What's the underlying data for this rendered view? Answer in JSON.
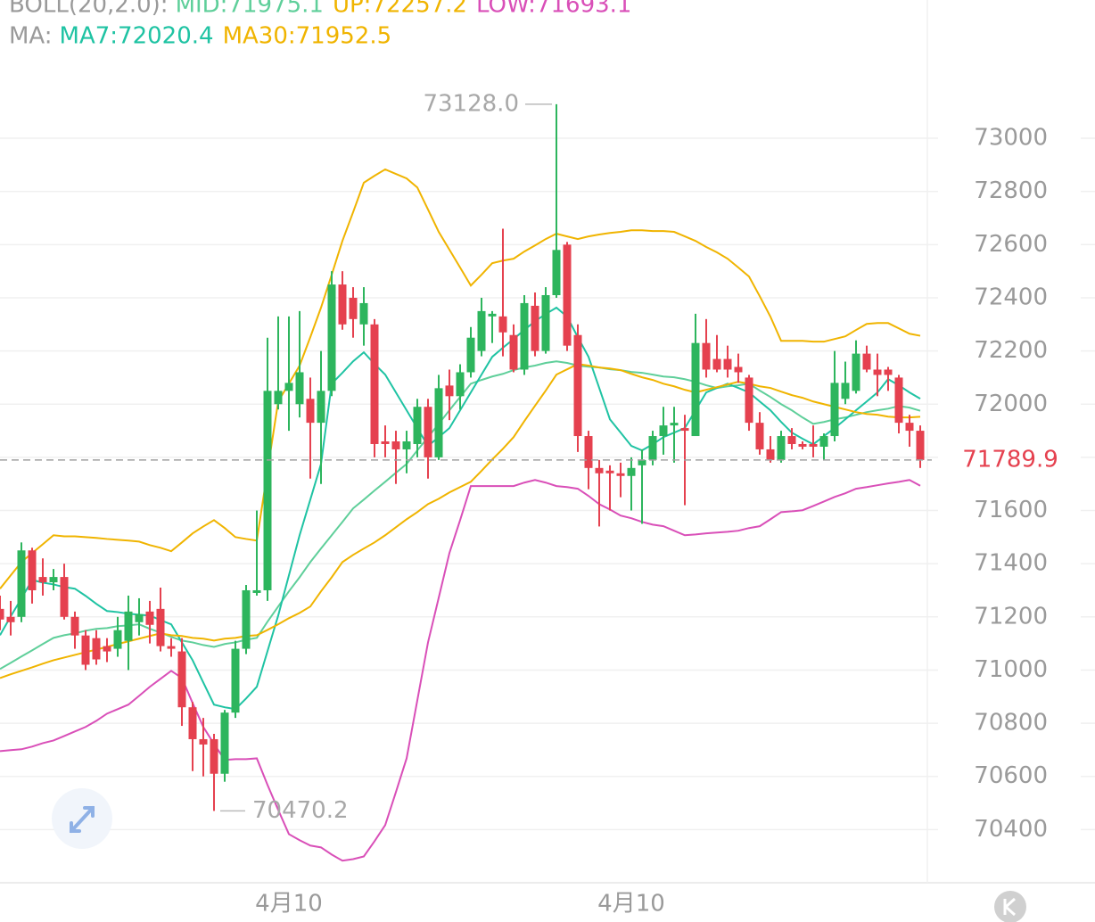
{
  "chart_data": {
    "type": "candlestick",
    "up_color": "#2db55d",
    "down_color": "#e5414f",
    "ylim": [
      70200,
      73520
    ],
    "yticks": [
      70400,
      70600,
      70800,
      71000,
      71200,
      71400,
      71600,
      71800,
      72000,
      72200,
      72400,
      72600,
      72800,
      73000
    ],
    "grid": true,
    "categories": [
      null,
      null,
      null,
      null,
      null,
      null,
      null,
      null,
      null,
      null,
      null,
      null,
      null,
      null,
      null,
      null,
      null,
      null,
      null,
      null,
      null,
      null,
      null,
      null,
      null,
      null,
      null,
      "4月10",
      null,
      null,
      null,
      null,
      null,
      null,
      null,
      null,
      null,
      null,
      null,
      null,
      null,
      null,
      null,
      null,
      null,
      null,
      null,
      null,
      null,
      null,
      null,
      null,
      null,
      null,
      null,
      null,
      null,
      null,
      null,
      "4月10",
      null,
      null,
      null,
      null,
      null,
      null,
      null,
      null,
      null,
      null,
      null,
      null,
      null,
      null,
      null,
      null,
      null,
      null,
      null,
      null,
      null,
      null,
      null,
      null,
      null,
      null,
      null
    ],
    "candles": [
      [
        71230,
        71280,
        71150,
        71190
      ],
      [
        71200,
        71260,
        71130,
        71180
      ],
      [
        71200,
        71480,
        71180,
        71450
      ],
      [
        71450,
        71460,
        71250,
        71300
      ],
      [
        71350,
        71420,
        71280,
        71330
      ],
      [
        71330,
        71380,
        71300,
        71350
      ],
      [
        71350,
        71400,
        71190,
        71200
      ],
      [
        71200,
        71220,
        71080,
        71130
      ],
      [
        71130,
        71150,
        71000,
        71020
      ],
      [
        71120,
        71150,
        71020,
        71040
      ],
      [
        71090,
        71120,
        71030,
        71070
      ],
      [
        71080,
        71200,
        71050,
        71150
      ],
      [
        71110,
        71280,
        71000,
        71220
      ],
      [
        71180,
        71270,
        71130,
        71210
      ],
      [
        71220,
        71260,
        71100,
        71170
      ],
      [
        71230,
        71310,
        71070,
        71090
      ],
      [
        71090,
        71120,
        71050,
        71080
      ],
      [
        71070,
        71120,
        70790,
        70860
      ],
      [
        70860,
        70880,
        70620,
        70740
      ],
      [
        70740,
        70820,
        70600,
        70720
      ],
      [
        70740,
        70760,
        70470.2,
        70610
      ],
      [
        70610,
        70850,
        70580,
        70840
      ],
      [
        70840,
        71110,
        70820,
        71080
      ],
      [
        71080,
        71320,
        71060,
        71300
      ],
      [
        71290,
        71600,
        71280,
        71300
      ],
      [
        71300,
        72250,
        71260,
        72050
      ],
      [
        72000,
        72330,
        71980,
        72050
      ],
      [
        72050,
        72330,
        71900,
        72080
      ],
      [
        72000,
        72350,
        71950,
        72120
      ],
      [
        72020,
        72100,
        71720,
        71930
      ],
      [
        71930,
        72200,
        71700,
        72050
      ],
      [
        72050,
        72500,
        72030,
        72450
      ],
      [
        72450,
        72500,
        72280,
        72300
      ],
      [
        72400,
        72440,
        72250,
        72320
      ],
      [
        72300,
        72440,
        72220,
        72380
      ],
      [
        72300,
        72320,
        71800,
        71850
      ],
      [
        71860,
        71920,
        71800,
        71850
      ],
      [
        71860,
        71900,
        71700,
        71830
      ],
      [
        71830,
        71900,
        71740,
        71860
      ],
      [
        71850,
        72020,
        71800,
        71990
      ],
      [
        71990,
        72020,
        71720,
        71800
      ],
      [
        71800,
        72110,
        71790,
        72060
      ],
      [
        72070,
        72130,
        71940,
        72030
      ],
      [
        72030,
        72150,
        71980,
        72120
      ],
      [
        72120,
        72290,
        72100,
        72250
      ],
      [
        72200,
        72400,
        72180,
        72350
      ],
      [
        72330,
        72350,
        72230,
        72340
      ],
      [
        72330,
        72660,
        72180,
        72270
      ],
      [
        72260,
        72300,
        72120,
        72130
      ],
      [
        72130,
        72410,
        72110,
        72380
      ],
      [
        72370,
        72420,
        72180,
        72200
      ],
      [
        72200,
        72440,
        72190,
        72410
      ],
      [
        72410,
        73128.0,
        72400,
        72580
      ],
      [
        72600,
        72610,
        72200,
        72220
      ],
      [
        72260,
        72300,
        71820,
        71880
      ],
      [
        71880,
        71900,
        71680,
        71760
      ],
      [
        71760,
        71790,
        71540,
        71740
      ],
      [
        71750,
        71770,
        71600,
        71740
      ],
      [
        71740,
        71780,
        71650,
        71730
      ],
      [
        71730,
        71800,
        71600,
        71760
      ],
      [
        71770,
        71830,
        71550,
        71790
      ],
      [
        71790,
        71900,
        71770,
        71880
      ],
      [
        71880,
        71990,
        71810,
        71920
      ],
      [
        71920,
        71990,
        71780,
        71930
      ],
      [
        71910,
        71960,
        71620,
        71900
      ],
      [
        71880,
        72340,
        71880,
        72230
      ],
      [
        72230,
        72320,
        72100,
        72130
      ],
      [
        72170,
        72260,
        72120,
        72130
      ],
      [
        72170,
        72220,
        72100,
        72130
      ],
      [
        72140,
        72190,
        72080,
        72120
      ],
      [
        72100,
        72110,
        71900,
        71930
      ],
      [
        71930,
        71970,
        71810,
        71830
      ],
      [
        71830,
        71880,
        71780,
        71790
      ],
      [
        71790,
        71900,
        71780,
        71880
      ],
      [
        71880,
        71910,
        71830,
        71850
      ],
      [
        71850,
        71860,
        71830,
        71840
      ],
      [
        71850,
        71920,
        71800,
        71840
      ],
      [
        71840,
        71890,
        71790,
        71880
      ],
      [
        71880,
        72200,
        71860,
        72080
      ],
      [
        72020,
        72160,
        72000,
        72080
      ],
      [
        72050,
        72240,
        72040,
        72190
      ],
      [
        72190,
        72220,
        72120,
        72130
      ],
      [
        72130,
        72190,
        72030,
        72110
      ],
      [
        72130,
        72140,
        72050,
        72110
      ],
      [
        72100,
        72110,
        71890,
        71930
      ],
      [
        71930,
        71960,
        71840,
        71900
      ],
      [
        71900,
        71920,
        71760,
        71789.9
      ]
    ],
    "indicators": [
      {
        "label": "BOLL(20,2.0):",
        "series": [
          {
            "name": "MID:71975.1",
            "color": "#5fcf9a",
            "values": [
              71004,
              71027,
              71051,
              71074,
              71098,
              71121,
              71131,
              71138,
              71148,
              71155,
              71158,
              71165,
              71168,
              71172,
              71155,
              71141,
              71125,
              71111,
              71104,
              71094,
              71087,
              71098,
              71104,
              71114,
              71121,
              71182,
              71239,
              71296,
              71349,
              71406,
              71457,
              71507,
              71557,
              71608,
              71641,
              71675,
              71708,
              71742,
              71775,
              71826,
              71876,
              71926,
              71977,
              72027,
              72077,
              72091,
              72104,
              72114,
              72128,
              72138,
              72145,
              72155,
              72161,
              72155,
              72145,
              72141,
              72138,
              72131,
              72128,
              72121,
              72118,
              72111,
              72104,
              72101,
              72094,
              72084,
              72071,
              72061,
              72067,
              72071,
              72077,
              72051,
              72027,
              72000,
              71977,
              71950,
              71926,
              71933,
              71943,
              71950,
              71960,
              71970,
              71977,
              71983,
              71993,
              71987,
              71975.1
            ]
          },
          {
            "name": "UP:72257.2",
            "color": "#f0b400",
            "values": [
              71306,
              71356,
              71406,
              71440,
              71473,
              71507,
              71503,
              71503,
              71500,
              71497,
              71493,
              71490,
              71487,
              71483,
              71470,
              71460,
              71447,
              71480,
              71514,
              71540,
              71564,
              71534,
              71500,
              71493,
              71487,
              71749,
              72010,
              72077,
              72145,
              72252,
              72363,
              72487,
              72614,
              72722,
              72833,
              72859,
              72883,
              72866,
              72849,
              72815,
              72732,
              72648,
              72581,
              72514,
              72446,
              72487,
              72530,
              72540,
              72547,
              72574,
              72597,
              72621,
              72641,
              72631,
              72621,
              72631,
              72638,
              72644,
              72648,
              72654,
              72654,
              72651,
              72651,
              72648,
              72631,
              72614,
              72591,
              72571,
              72547,
              72514,
              72480,
              72406,
              72329,
              72238,
              72238,
              72238,
              72235,
              72235,
              72245,
              72255,
              72279,
              72302,
              72305,
              72305,
              72285,
              72265,
              72257.2
            ]
          },
          {
            "name": "LOW:71693.1",
            "color": "#d94fb8",
            "values": [
              70695,
              70699,
              70702,
              70712,
              70725,
              70735,
              70752,
              70769,
              70786,
              70809,
              70836,
              70853,
              70870,
              70903,
              70937,
              70967,
              70997,
              70970,
              70876,
              70786,
              70722,
              70662,
              70665,
              70665,
              70668,
              70568,
              70474,
              70383,
              70360,
              70340,
              70333,
              70306,
              70283,
              70289,
              70299,
              70356,
              70417,
              70541,
              70668,
              70886,
              71104,
              71272,
              71440,
              71564,
              71692,
              71692,
              71692,
              71692,
              71692,
              71705,
              71715,
              71705,
              71692,
              71688,
              71682,
              71655,
              71624,
              71604,
              71581,
              71571,
              71557,
              71547,
              71541,
              71524,
              71507,
              71510,
              71514,
              71517,
              71520,
              71524,
              71534,
              71541,
              71567,
              71594,
              71597,
              71601,
              71617,
              71634,
              71651,
              71665,
              71682,
              71688,
              71695,
              71702,
              71708,
              71715,
              71693.1
            ]
          }
        ]
      },
      {
        "label": "MA:",
        "series": [
          {
            "name": "MA7:72020.4",
            "color": "#1fc3a3",
            "values": [
              71131,
              71202,
              71269,
              71339,
              71329,
              71322,
              71312,
              71306,
              71279,
              71249,
              71222,
              71218,
              71212,
              71208,
              71205,
              71188,
              71172,
              71104,
              71037,
              70953,
              70870,
              70860,
              70853,
              70893,
              70937,
              71071,
              71205,
              71356,
              71507,
              71641,
              71775,
              72077,
              72118,
              72161,
              72195,
              72151,
              72111,
              72044,
              71977,
              71910,
              71843,
              71876,
              71910,
              71977,
              72044,
              72111,
              72178,
              72212,
              72245,
              72279,
              72312,
              72339,
              72363,
              72329,
              72252,
              72178,
              72061,
              71943,
              71893,
              71843,
              71826,
              71849,
              71876,
              71893,
              71910,
              71977,
              72044,
              72061,
              72077,
              72061,
              72044,
              72010,
              71977,
              71933,
              71893,
              71870,
              71849,
              71880,
              71910,
              71943,
              71977,
              72010,
              72044,
              72094,
              72071,
              72044,
              72020.4
            ]
          },
          {
            "name": "MA30:71952.5",
            "color": "#f0b400",
            "values": [
              70970,
              70984,
              70997,
              71010,
              71024,
              71037,
              71047,
              71057,
              71067,
              71077,
              71087,
              71098,
              71108,
              71118,
              71128,
              71138,
              71131,
              71128,
              71121,
              71118,
              71111,
              71118,
              71121,
              71128,
              71131,
              71151,
              71172,
              71195,
              71215,
              71239,
              71296,
              71349,
              71406,
              71433,
              71457,
              71480,
              71507,
              71537,
              71567,
              71594,
              71624,
              71644,
              71668,
              71688,
              71708,
              71749,
              71792,
              71832,
              71876,
              71936,
              71994,
              72051,
              72111,
              72131,
              72151,
              72145,
              72138,
              72134,
              72128,
              72114,
              72101,
              72091,
              72077,
              72067,
              72054,
              72044,
              72054,
              72064,
              72074,
              72084,
              72077,
              72067,
              72061,
              72047,
              72034,
              72024,
              72010,
              72000,
              71990,
              71980,
              71970,
              71963,
              71960,
              71953,
              71950,
              71950,
              71952.5
            ]
          }
        ]
      }
    ],
    "max_label": "73128.0",
    "min_label": "70470.2",
    "last_price_label": "71789.9",
    "last_price_color": "#e5414f"
  }
}
